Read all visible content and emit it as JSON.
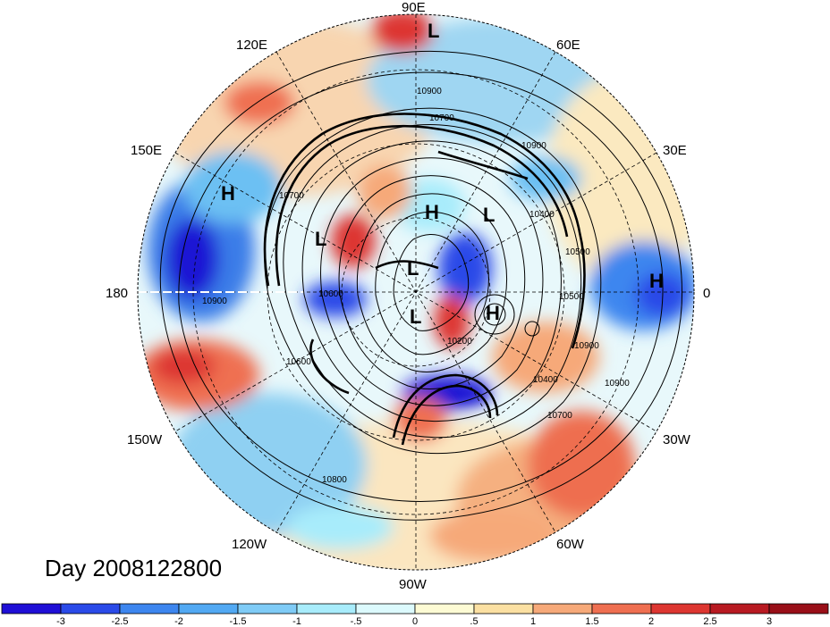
{
  "map": {
    "projection": "north-polar-stereographic",
    "day_label": "Day 2008122800",
    "longitude_labels": [
      "90E",
      "60E",
      "30E",
      "0",
      "30W",
      "60W",
      "90W",
      "120W",
      "150W",
      "180",
      "150E",
      "120E"
    ],
    "pressure_centers": [
      {
        "type": "L"
      },
      {
        "type": "H"
      },
      {
        "type": "L"
      },
      {
        "type": "H"
      },
      {
        "type": "L"
      },
      {
        "type": "L"
      },
      {
        "type": "H"
      },
      {
        "type": "H"
      },
      {
        "type": "L"
      }
    ],
    "contour_labels": [
      "10900",
      "10700",
      "10900",
      "10400",
      "10500",
      "10200",
      "10400",
      "10700",
      "10900",
      "10800",
      "10600",
      "10900",
      "10600",
      "10500",
      "10700",
      "10900"
    ],
    "colors": {
      "ocean_anomaly_neg_strong": "#1a10d6",
      "anomaly_pos_strong": "#a80f18",
      "contour": "#000000"
    }
  },
  "colorbar": {
    "tick_labels": [
      "-3",
      "-2.5",
      "-2",
      "-1.5",
      "-1",
      "-.5",
      "0",
      ".5",
      "1",
      "1.5",
      "2",
      "2.5",
      "3"
    ],
    "colors": [
      "#1f0fd6",
      "#2a4ae8",
      "#3d86ef",
      "#52a9f3",
      "#7fcbf6",
      "#a8ecfb",
      "#dcfafd",
      "#fdfbd4",
      "#fbe0a2",
      "#f6a979",
      "#ef6f51",
      "#dd3631",
      "#b81a22",
      "#990f18"
    ]
  }
}
